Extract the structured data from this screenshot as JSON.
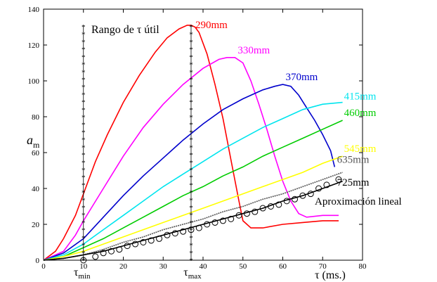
{
  "chart_data": {
    "type": "line",
    "title": "",
    "ylabel_main": "a",
    "ylabel_sub": "m",
    "xlabel": "τ (ms.)",
    "xlim": [
      0,
      80
    ],
    "ylim": [
      0,
      140
    ],
    "xticks": [
      0,
      10,
      20,
      30,
      40,
      50,
      60,
      70,
      80
    ],
    "yticks": [
      0,
      20,
      40,
      60,
      80,
      100,
      120,
      140
    ],
    "grid": false,
    "legend": "inline labels at line ends",
    "annotations": {
      "range_label": "Rango de τ útil",
      "tau_min_main": "τ",
      "tau_min_sub": "min",
      "tau_max_main": "τ",
      "tau_max_sub": "max",
      "tau_min_x": 10,
      "tau_max_x": 37,
      "lineal_label": "Aproximación lineal"
    },
    "series": [
      {
        "name": "290mm",
        "color": "#ff0000",
        "x": [
          0,
          3,
          5,
          8,
          10,
          13,
          16,
          20,
          24,
          28,
          31,
          34,
          36,
          37,
          38,
          39,
          41,
          43,
          45,
          47,
          49,
          50,
          52,
          55,
          60,
          65,
          70,
          74
        ],
        "y": [
          0,
          5,
          12,
          25,
          37,
          55,
          70,
          88,
          103,
          116,
          124,
          129,
          131,
          131,
          130,
          127,
          115,
          98,
          79,
          56,
          33,
          22,
          18,
          18,
          20,
          21,
          22,
          22
        ]
      },
      {
        "name": "330mm",
        "color": "#ff00ff",
        "x": [
          0,
          5,
          8,
          10,
          15,
          20,
          25,
          30,
          35,
          40,
          44,
          46,
          48,
          50,
          52,
          54,
          56,
          58,
          60,
          62,
          64,
          66,
          70,
          74
        ],
        "y": [
          0,
          5,
          14,
          22,
          40,
          58,
          74,
          87,
          98,
          107,
          112,
          113,
          113,
          110,
          100,
          87,
          73,
          58,
          44,
          33,
          26,
          24,
          25,
          25
        ]
      },
      {
        "name": "370mm",
        "color": "#0000cc",
        "x": [
          0,
          5,
          10,
          15,
          20,
          25,
          30,
          35,
          40,
          45,
          50,
          55,
          58,
          60,
          62,
          64,
          66,
          68,
          70,
          72,
          73
        ],
        "y": [
          0,
          4,
          12,
          24,
          36,
          47,
          57,
          67,
          76,
          84,
          90,
          95,
          97,
          98,
          97,
          92,
          85,
          78,
          70,
          61,
          52
        ]
      },
      {
        "name": "415mm",
        "color": "#00e5ee",
        "x": [
          0,
          5,
          10,
          15,
          20,
          25,
          30,
          35,
          40,
          45,
          50,
          55,
          60,
          65,
          70,
          75
        ],
        "y": [
          0,
          3,
          9,
          17,
          25,
          33,
          41,
          48,
          55,
          62,
          68,
          74,
          79,
          84,
          87,
          88
        ]
      },
      {
        "name": "460mm",
        "color": "#00cc00",
        "x": [
          0,
          5,
          10,
          15,
          20,
          25,
          30,
          35,
          40,
          45,
          50,
          55,
          60,
          65,
          70,
          75
        ],
        "y": [
          0,
          2,
          7,
          12,
          18,
          24,
          30,
          36,
          41,
          47,
          52,
          58,
          63,
          68,
          73,
          78
        ]
      },
      {
        "name": "545mm",
        "color": "#ffff00",
        "x": [
          0,
          5,
          10,
          15,
          20,
          25,
          30,
          35,
          40,
          45,
          50,
          55,
          60,
          65,
          70,
          75
        ],
        "y": [
          0,
          2,
          5,
          9,
          13,
          17,
          21,
          25,
          29,
          33,
          37,
          41,
          45,
          49,
          54,
          58
        ]
      },
      {
        "name": "635mm",
        "color": "#555555",
        "x": [
          0,
          5,
          10,
          15,
          20,
          25,
          30,
          35,
          40,
          45,
          50,
          55,
          60,
          65,
          70,
          75
        ],
        "y": [
          0,
          1,
          3,
          6,
          10,
          13,
          17,
          20,
          23,
          27,
          30,
          34,
          37,
          41,
          45,
          49
        ]
      },
      {
        "name": "725mm",
        "color": "#000000",
        "x": [
          0,
          5,
          10,
          15,
          20,
          25,
          30,
          35,
          40,
          45,
          50,
          55,
          60,
          65,
          70,
          75
        ],
        "y": [
          0,
          1,
          3,
          5,
          8,
          11,
          14,
          17,
          20,
          23,
          26,
          29,
          33,
          36,
          40,
          44
        ]
      }
    ],
    "linear_approx_points": {
      "x": [
        10,
        13,
        15,
        17,
        19,
        21,
        23,
        25,
        27,
        29,
        31,
        33,
        35,
        37,
        39,
        41,
        43,
        45,
        47,
        49,
        51,
        53,
        55,
        57,
        59,
        61,
        63,
        65,
        67,
        69,
        71,
        74
      ],
      "y": [
        0,
        2,
        4,
        5,
        6,
        8,
        9,
        10,
        11,
        12,
        14,
        15,
        16,
        17,
        18,
        20,
        21,
        22,
        23,
        25,
        26,
        27,
        29,
        30,
        31,
        33,
        34,
        36,
        37,
        40,
        42,
        45
      ]
    }
  }
}
